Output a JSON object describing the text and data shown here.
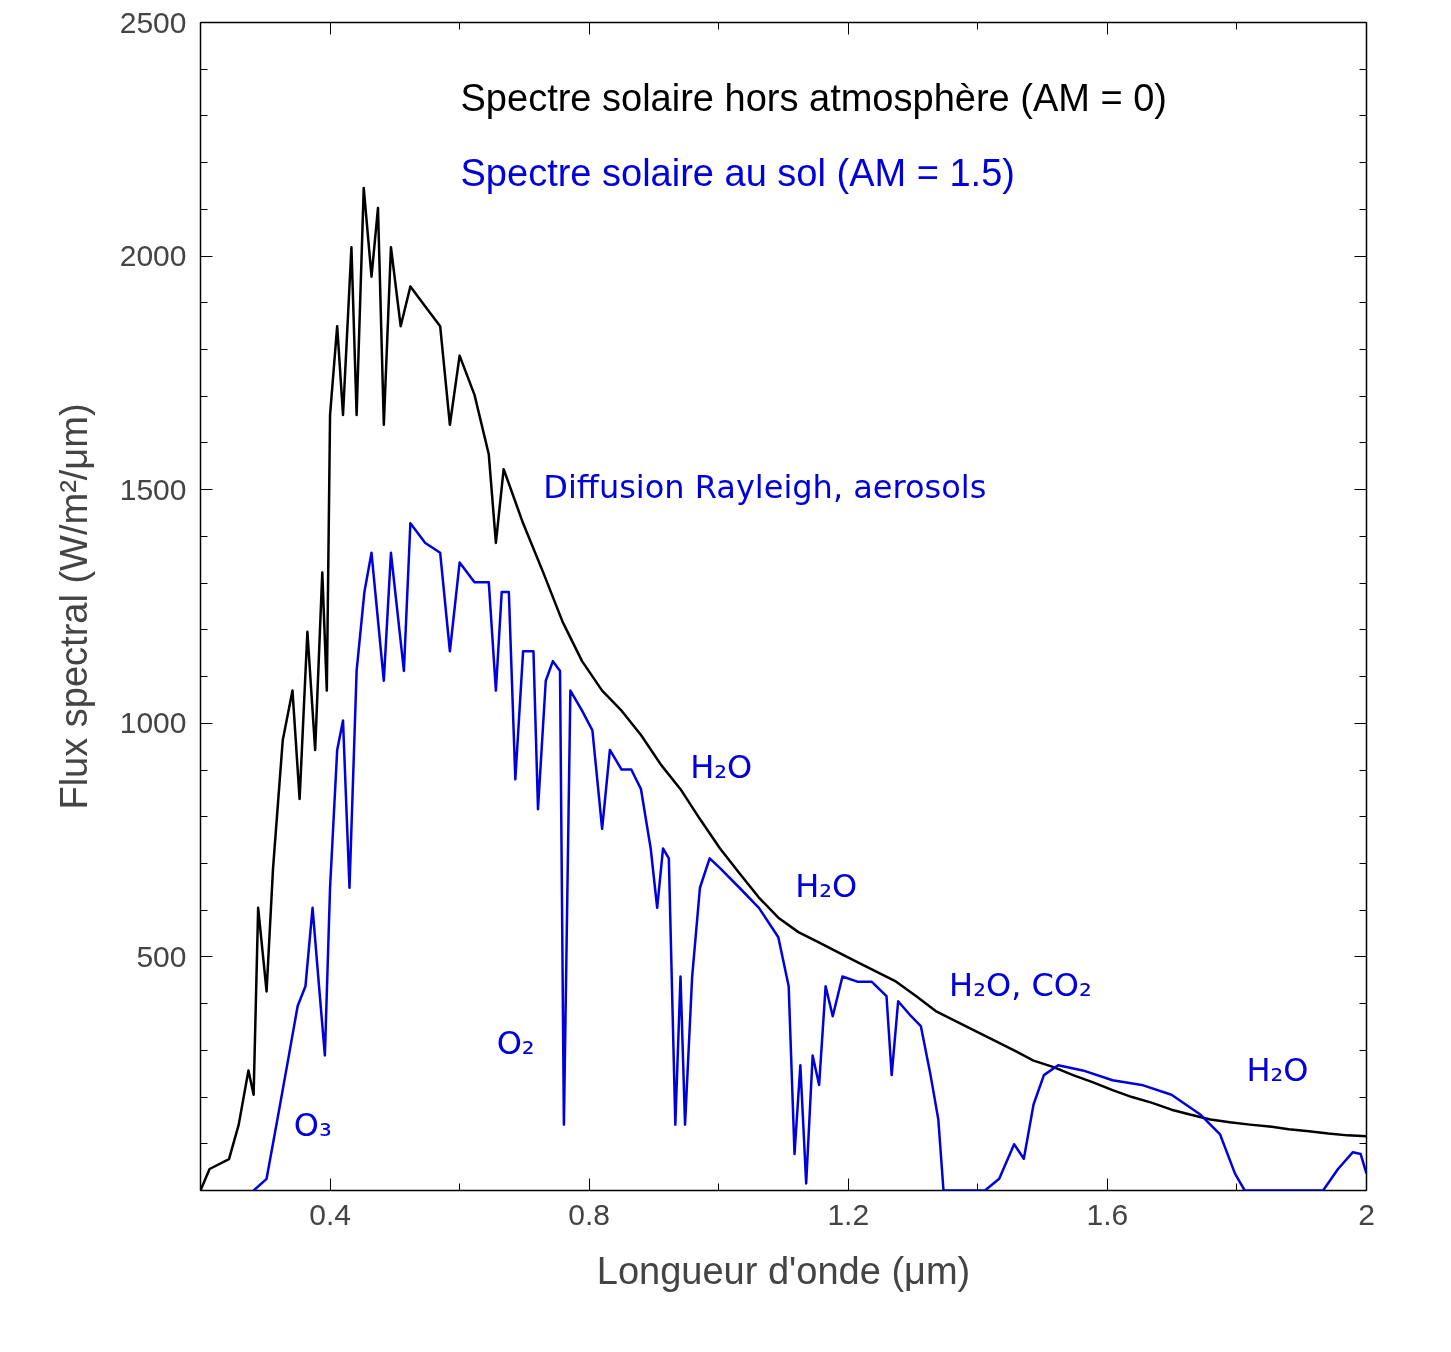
{
  "chart_data": {
    "type": "line",
    "xlabel": "Longueur d'onde (μm)",
    "ylabel": "Flux spectral (W/m²/μm)",
    "xlim": [
      0.2,
      2
    ],
    "ylim": [
      0,
      2500
    ],
    "xticks": [
      0.4,
      0.8,
      1.2,
      1.6,
      2
    ],
    "yticks": [
      {
        "value": 0,
        "label": null
      },
      500,
      1000,
      1500,
      2000,
      2500
    ],
    "legend": "top right",
    "series": [
      {
        "name": "Spectre solaire hors atmosphère (AM = 0)",
        "color": "#000000",
        "x": [
          0.2,
          0.214,
          0.244,
          0.259,
          0.274,
          0.282,
          0.289,
          0.302,
          0.312,
          0.327,
          0.342,
          0.353,
          0.365,
          0.377,
          0.388,
          0.395,
          0.4,
          0.411,
          0.42,
          0.433,
          0.441,
          0.452,
          0.464,
          0.474,
          0.483,
          0.494,
          0.509,
          0.524,
          0.547,
          0.57,
          0.585,
          0.6,
          0.623,
          0.645,
          0.656,
          0.668,
          0.698,
          0.729,
          0.759,
          0.789,
          0.82,
          0.85,
          0.88,
          0.911,
          0.941,
          0.971,
          1.002,
          1.032,
          1.062,
          1.092,
          1.123,
          1.153,
          1.183,
          1.214,
          1.244,
          1.274,
          1.305,
          1.335,
          1.365,
          1.395,
          1.426,
          1.456,
          1.486,
          1.517,
          1.547,
          1.577,
          1.608,
          1.638,
          1.668,
          1.699,
          1.729,
          1.759,
          1.789,
          1.82,
          1.85,
          1.88,
          1.911,
          1.941,
          1.971,
          2.0
        ],
        "values": [
          0,
          46,
          67,
          141,
          257,
          205,
          605,
          426,
          690,
          964,
          1070,
          838,
          1196,
          943,
          1323,
          1070,
          1660,
          1850,
          1660,
          2019,
          1660,
          2146,
          1956,
          2103,
          1639,
          2019,
          1850,
          1935,
          1892,
          1850,
          1639,
          1787,
          1703,
          1576,
          1386,
          1544,
          1428,
          1323,
          1217,
          1133,
          1070,
          1027,
          975,
          911,
          859,
          795,
          732,
          679,
          627,
          584,
          553,
          532,
          511,
          489,
          468,
          447,
          416,
          384,
          363,
          342,
          321,
          300,
          278,
          264,
          247,
          232,
          215,
          200,
          188,
          173,
          162,
          152,
          146,
          141,
          137,
          131,
          127,
          122,
          118,
          116
        ]
      },
      {
        "name": "Spectre solaire au sol (AM = 1.5)",
        "color": "#0000dd",
        "x": [
          0.282,
          0.302,
          0.32,
          0.335,
          0.35,
          0.362,
          0.373,
          0.383,
          0.392,
          0.4,
          0.411,
          0.42,
          0.43,
          0.441,
          0.453,
          0.464,
          0.483,
          0.494,
          0.514,
          0.524,
          0.547,
          0.57,
          0.585,
          0.6,
          0.623,
          0.645,
          0.656,
          0.665,
          0.676,
          0.686,
          0.698,
          0.714,
          0.721,
          0.733,
          0.744,
          0.755,
          0.761,
          0.771,
          0.789,
          0.805,
          0.82,
          0.832,
          0.85,
          0.865,
          0.88,
          0.895,
          0.905,
          0.914,
          0.923,
          0.933,
          0.941,
          0.948,
          0.959,
          0.971,
          0.986,
          1.002,
          1.032,
          1.062,
          1.092,
          1.108,
          1.117,
          1.126,
          1.135,
          1.145,
          1.155,
          1.165,
          1.176,
          1.191,
          1.214,
          1.236,
          1.259,
          1.267,
          1.277,
          1.297,
          1.312,
          1.327,
          1.339,
          1.347,
          1.411,
          1.433,
          1.456,
          1.471,
          1.486,
          1.502,
          1.524,
          1.562,
          1.608,
          1.653,
          1.699,
          1.744,
          1.774,
          1.797,
          1.812,
          1.933,
          1.956,
          1.979,
          1.991,
          2.0
        ],
        "values": [
          0,
          25,
          162,
          278,
          395,
          437,
          605,
          437,
          289,
          648,
          943,
          1006,
          648,
          1112,
          1281,
          1365,
          1091,
          1365,
          1112,
          1428,
          1386,
          1365,
          1154,
          1344,
          1302,
          1302,
          1070,
          1281,
          1281,
          880,
          1154,
          1154,
          816,
          1091,
          1133,
          1112,
          141,
          1070,
          1027,
          985,
          774,
          943,
          901,
          901,
          859,
          732,
          605,
          732,
          711,
          141,
          458,
          141,
          458,
          648,
          711,
          690,
          648,
          605,
          542,
          437,
          78,
          268,
          15,
          289,
          226,
          437,
          373,
          458,
          447,
          447,
          416,
          247,
          405,
          373,
          352,
          247,
          152,
          0,
          0,
          25,
          99,
          68,
          184,
          247,
          268,
          257,
          236,
          226,
          205,
          162,
          120,
          36,
          0,
          0,
          46,
          82,
          78,
          36
        ]
      }
    ],
    "annotations": [
      "Diffusion Rayleigh, aerosols",
      "H₂O",
      "H₂O",
      "H₂O, CO₂",
      "O₂",
      "O₃",
      "H₂O"
    ]
  }
}
